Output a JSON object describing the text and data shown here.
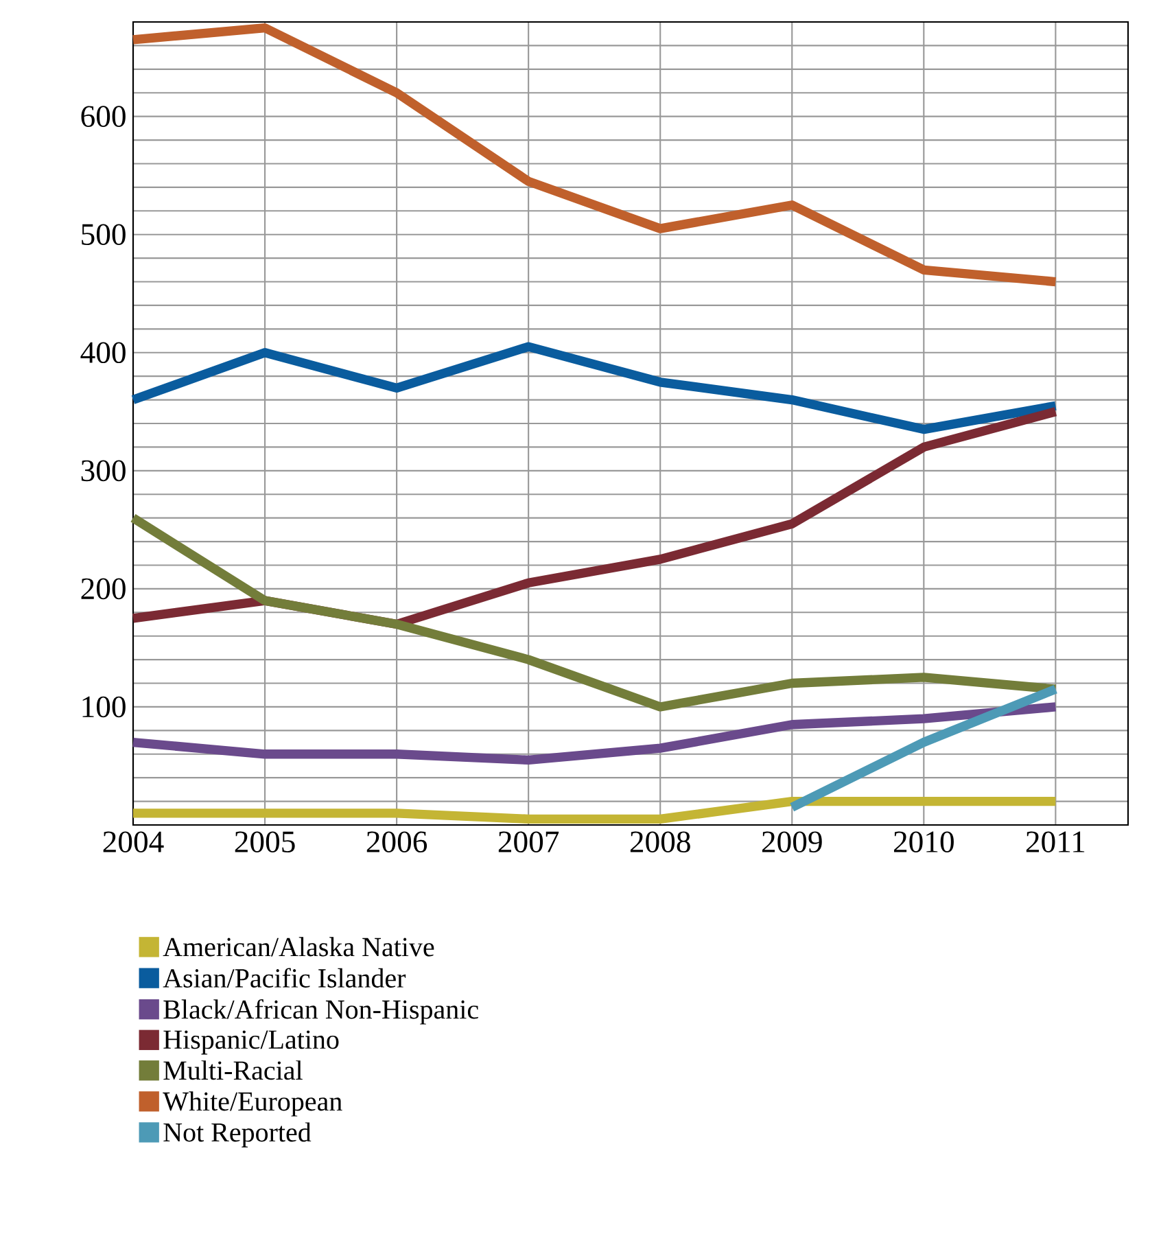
{
  "chart_data": {
    "type": "line",
    "x": [
      2004,
      2005,
      2006,
      2007,
      2008,
      2009,
      2010,
      2011
    ],
    "series": [
      {
        "name": "American/Alaska Native",
        "color": "#c4b534",
        "values": [
          10,
          10,
          10,
          5,
          5,
          20,
          20,
          20
        ]
      },
      {
        "name": "Asian/Pacific Islander",
        "color": "#0a5c9e",
        "values": [
          360,
          400,
          370,
          405,
          375,
          360,
          335,
          355
        ]
      },
      {
        "name": "Black/African Non-Hispanic",
        "color": "#6a4a8c",
        "values": [
          70,
          60,
          60,
          55,
          65,
          85,
          90,
          100
        ]
      },
      {
        "name": "Hispanic/Latino",
        "color": "#7b2a33",
        "values": [
          175,
          190,
          170,
          205,
          225,
          255,
          320,
          350
        ]
      },
      {
        "name": "Multi-Racial",
        "color": "#737d3a",
        "values": [
          260,
          190,
          170,
          140,
          100,
          120,
          125,
          115
        ]
      },
      {
        "name": "White/European",
        "color": "#c0602c",
        "values": [
          665,
          675,
          620,
          545,
          505,
          525,
          470,
          460
        ]
      },
      {
        "name": "Not Reported",
        "color": "#4d9ab6",
        "x": [
          2009,
          2010,
          2011
        ],
        "values": [
          15,
          70,
          115
        ]
      }
    ],
    "xlim": [
      2004,
      2011.55
    ],
    "ylim": [
      0,
      680
    ],
    "xticks": [
      2004,
      2005,
      2006,
      2007,
      2008,
      2009,
      2010,
      2011
    ],
    "yticks": [
      {
        "value": 20,
        "label": null
      },
      {
        "value": 40,
        "label": null
      },
      {
        "value": 60,
        "label": null
      },
      {
        "value": 80,
        "label": null
      },
      100,
      {
        "value": 120,
        "label": null
      },
      {
        "value": 140,
        "label": null
      },
      {
        "value": 160,
        "label": null
      },
      {
        "value": 180,
        "label": null
      },
      200,
      {
        "value": 220,
        "label": null
      },
      {
        "value": 240,
        "label": null
      },
      {
        "value": 260,
        "label": null
      },
      {
        "value": 280,
        "label": null
      },
      300,
      {
        "value": 320,
        "label": null
      },
      {
        "value": 340,
        "label": null
      },
      {
        "value": 360,
        "label": null
      },
      {
        "value": 380,
        "label": null
      },
      400,
      {
        "value": 420,
        "label": null
      },
      {
        "value": 440,
        "label": null
      },
      {
        "value": 460,
        "label": null
      },
      {
        "value": 480,
        "label": null
      },
      500,
      {
        "value": 520,
        "label": null
      },
      {
        "value": 540,
        "label": null
      },
      {
        "value": 560,
        "label": null
      },
      {
        "value": 580,
        "label": null
      },
      600,
      {
        "value": 620,
        "label": null
      },
      {
        "value": 640,
        "label": null
      },
      {
        "value": 660,
        "label": null
      },
      {
        "value": 680,
        "label": null
      }
    ],
    "grid": true,
    "legend": "bottom",
    "marker": "none",
    "line_style": "solid"
  }
}
